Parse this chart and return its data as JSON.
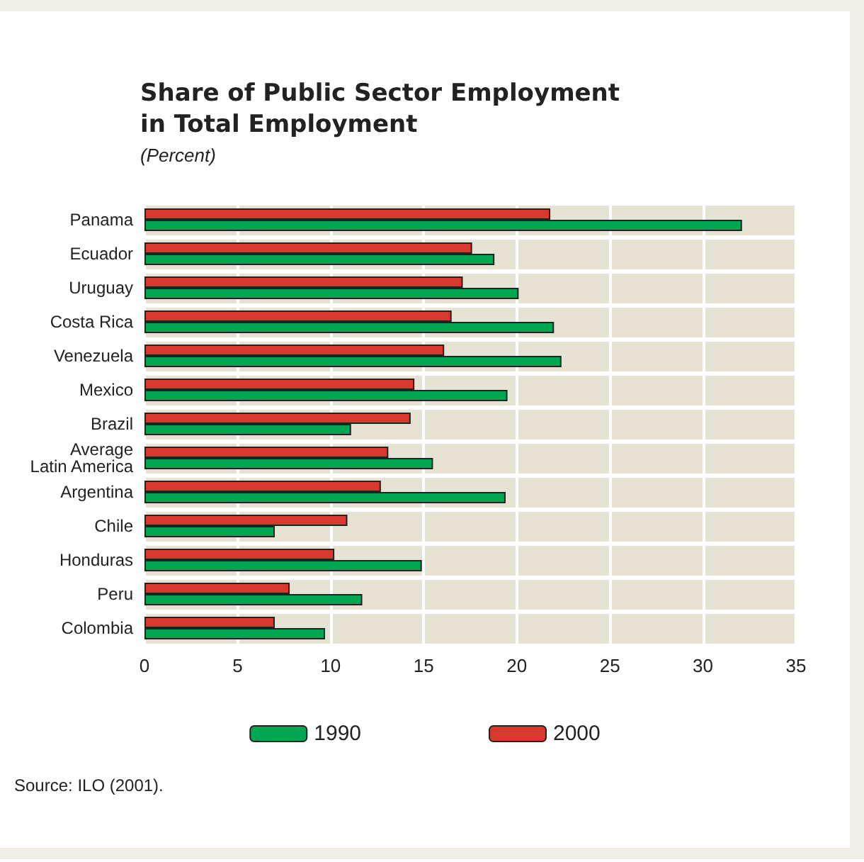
{
  "chart_data": {
    "type": "bar",
    "orientation": "horizontal",
    "title": "Share of Public Sector Employment\nin Total Employment",
    "subtitle": "(Percent)",
    "categories": [
      "Panama",
      "Ecuador",
      "Uruguay",
      "Costa Rica",
      "Venezuela",
      "Mexico",
      "Brazil",
      "Average\nLatin America",
      "Argentina",
      "Chile",
      "Honduras",
      "Peru",
      "Colombia"
    ],
    "series": [
      {
        "name": "1990",
        "color": "#00a651",
        "values": [
          32.1,
          18.8,
          20.1,
          22.0,
          22.4,
          19.5,
          11.1,
          15.5,
          19.4,
          7.0,
          14.9,
          11.7,
          9.7
        ]
      },
      {
        "name": "2000",
        "color": "#d7392f",
        "values": [
          21.8,
          17.6,
          17.1,
          16.5,
          16.1,
          14.5,
          14.3,
          13.1,
          12.7,
          10.9,
          10.2,
          7.8,
          7.0
        ]
      }
    ],
    "xlim": [
      0,
      35
    ],
    "xticks": [
      0,
      5,
      10,
      15,
      20,
      25,
      30,
      35
    ],
    "grid": true,
    "legend": "bottom",
    "annotations": [
      "Source: ILO (2001)."
    ]
  }
}
